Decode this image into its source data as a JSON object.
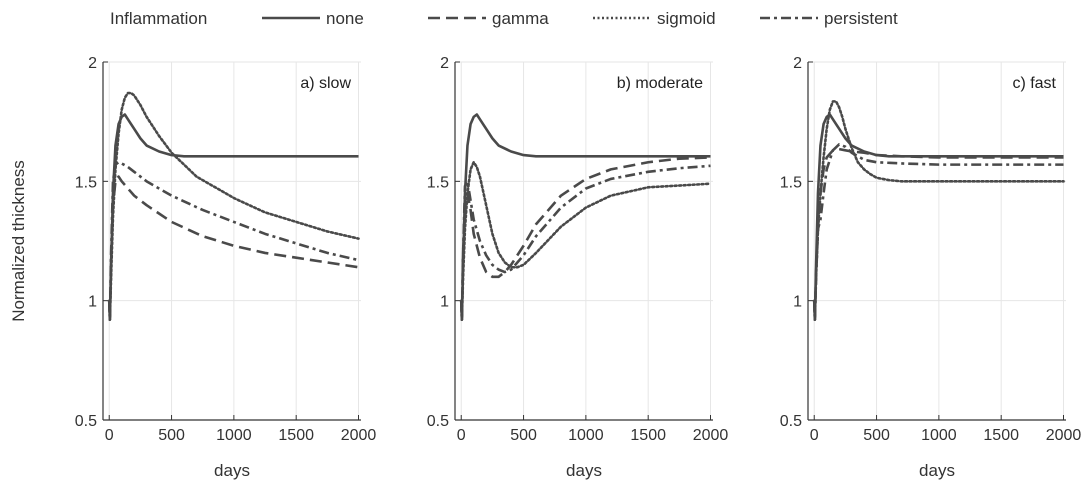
{
  "legend": {
    "title": "Inflammation",
    "entries": [
      "none",
      "gamma",
      "sigmoid",
      "persistent"
    ]
  },
  "colors": {
    "line": "#4a4a4a",
    "grid": "#e6e6e6",
    "axis": "#333333"
  },
  "chart_data": [
    {
      "type": "line",
      "title": "a) slow",
      "xlabel": "days",
      "ylabel": "Normalized thickness",
      "xlim": [
        -50,
        2020
      ],
      "ylim": [
        0.5,
        2
      ],
      "xticks": [
        0,
        500,
        1000,
        1500,
        2000
      ],
      "yticks": [
        0.5,
        1,
        1.5,
        2
      ],
      "grid": true,
      "series": [
        {
          "name": "none",
          "style": "solid",
          "x": [
            0,
            5,
            15,
            30,
            50,
            75,
            100,
            125,
            150,
            200,
            250,
            300,
            400,
            500,
            600,
            800,
            1000,
            1500,
            2000
          ],
          "y": [
            1.0,
            0.92,
            1.15,
            1.45,
            1.65,
            1.74,
            1.77,
            1.78,
            1.76,
            1.72,
            1.68,
            1.65,
            1.625,
            1.61,
            1.605,
            1.605,
            1.605,
            1.605,
            1.605
          ]
        },
        {
          "name": "gamma",
          "style": "dashed",
          "x": [
            0,
            5,
            15,
            30,
            50,
            75,
            100,
            150,
            200,
            300,
            500,
            750,
            1000,
            1250,
            1500,
            1750,
            2000
          ],
          "y": [
            1.0,
            0.92,
            1.15,
            1.4,
            1.5,
            1.52,
            1.5,
            1.47,
            1.44,
            1.4,
            1.33,
            1.27,
            1.23,
            1.2,
            1.18,
            1.16,
            1.14
          ]
        },
        {
          "name": "sigmoid",
          "style": "dotted",
          "x": [
            0,
            5,
            15,
            30,
            50,
            75,
            100,
            125,
            150,
            175,
            200,
            250,
            300,
            400,
            500,
            700,
            1000,
            1250,
            1500,
            1750,
            2000
          ],
          "y": [
            1.0,
            0.92,
            1.1,
            1.35,
            1.55,
            1.7,
            1.8,
            1.85,
            1.87,
            1.87,
            1.86,
            1.82,
            1.77,
            1.69,
            1.62,
            1.52,
            1.43,
            1.37,
            1.33,
            1.29,
            1.26
          ]
        },
        {
          "name": "persistent",
          "style": "dashdot",
          "x": [
            0,
            5,
            15,
            30,
            50,
            75,
            100,
            150,
            200,
            300,
            500,
            750,
            1000,
            1250,
            1500,
            1750,
            2000
          ],
          "y": [
            1.0,
            0.92,
            1.2,
            1.5,
            1.57,
            1.58,
            1.575,
            1.56,
            1.54,
            1.5,
            1.44,
            1.38,
            1.33,
            1.28,
            1.24,
            1.2,
            1.17
          ]
        }
      ]
    },
    {
      "type": "line",
      "title": "b) moderate",
      "xlabel": "days",
      "ylabel": "",
      "xlim": [
        -50,
        2020
      ],
      "ylim": [
        0.5,
        2
      ],
      "xticks": [
        0,
        500,
        1000,
        1500,
        2000
      ],
      "yticks": [
        0.5,
        1,
        1.5,
        2
      ],
      "grid": true,
      "series": [
        {
          "name": "none",
          "style": "solid",
          "x": [
            0,
            5,
            15,
            30,
            50,
            75,
            100,
            125,
            150,
            200,
            250,
            300,
            400,
            500,
            600,
            800,
            1000,
            1500,
            2000
          ],
          "y": [
            1.0,
            0.92,
            1.15,
            1.45,
            1.65,
            1.74,
            1.77,
            1.78,
            1.76,
            1.72,
            1.68,
            1.65,
            1.625,
            1.61,
            1.605,
            1.605,
            1.605,
            1.605,
            1.605
          ]
        },
        {
          "name": "gamma",
          "style": "dashed",
          "x": [
            0,
            5,
            15,
            30,
            50,
            75,
            100,
            150,
            200,
            250,
            300,
            350,
            400,
            500,
            600,
            800,
            1000,
            1200,
            1500,
            1750,
            2000
          ],
          "y": [
            1.0,
            0.92,
            1.2,
            1.42,
            1.45,
            1.38,
            1.28,
            1.18,
            1.12,
            1.1,
            1.1,
            1.12,
            1.15,
            1.23,
            1.32,
            1.44,
            1.51,
            1.55,
            1.58,
            1.595,
            1.6
          ]
        },
        {
          "name": "sigmoid",
          "style": "dotted",
          "x": [
            0,
            5,
            15,
            30,
            50,
            75,
            100,
            125,
            150,
            200,
            250,
            300,
            350,
            400,
            450,
            500,
            600,
            800,
            1000,
            1200,
            1500,
            2000
          ],
          "y": [
            1.0,
            0.92,
            1.1,
            1.3,
            1.45,
            1.55,
            1.58,
            1.56,
            1.52,
            1.4,
            1.28,
            1.2,
            1.16,
            1.14,
            1.14,
            1.15,
            1.2,
            1.31,
            1.39,
            1.44,
            1.475,
            1.49
          ]
        },
        {
          "name": "persistent",
          "style": "dashdot",
          "x": [
            0,
            5,
            15,
            30,
            50,
            75,
            100,
            150,
            200,
            250,
            300,
            350,
            400,
            500,
            600,
            800,
            1000,
            1200,
            1500,
            1750,
            2000
          ],
          "y": [
            1.0,
            0.92,
            1.2,
            1.48,
            1.5,
            1.42,
            1.34,
            1.25,
            1.19,
            1.15,
            1.13,
            1.12,
            1.13,
            1.19,
            1.27,
            1.39,
            1.47,
            1.51,
            1.54,
            1.555,
            1.565
          ]
        }
      ]
    },
    {
      "type": "line",
      "title": "c) fast",
      "xlabel": "days",
      "ylabel": "",
      "xlim": [
        -50,
        2020
      ],
      "ylim": [
        0.5,
        2
      ],
      "xticks": [
        0,
        500,
        1000,
        1500,
        2000
      ],
      "yticks": [
        0.5,
        1,
        1.5,
        2
      ],
      "grid": true,
      "series": [
        {
          "name": "none",
          "style": "solid",
          "x": [
            0,
            5,
            15,
            30,
            50,
            75,
            100,
            125,
            150,
            200,
            250,
            300,
            400,
            500,
            600,
            800,
            1000,
            1500,
            2000
          ],
          "y": [
            1.0,
            0.92,
            1.15,
            1.45,
            1.65,
            1.74,
            1.77,
            1.78,
            1.76,
            1.72,
            1.68,
            1.65,
            1.625,
            1.61,
            1.605,
            1.605,
            1.605,
            1.605,
            1.605
          ]
        },
        {
          "name": "gamma",
          "style": "dashed",
          "x": [
            0,
            5,
            15,
            30,
            50,
            75,
            100,
            150,
            200,
            250,
            300,
            400,
            500,
            700,
            1000,
            1500,
            2000
          ],
          "y": [
            1.0,
            0.92,
            1.1,
            1.3,
            1.45,
            1.55,
            1.6,
            1.63,
            1.635,
            1.63,
            1.625,
            1.62,
            1.61,
            1.605,
            1.6,
            1.6,
            1.6
          ]
        },
        {
          "name": "sigmoid",
          "style": "dotted",
          "x": [
            0,
            5,
            15,
            30,
            50,
            75,
            100,
            125,
            150,
            175,
            200,
            225,
            250,
            300,
            350,
            400,
            450,
            500,
            600,
            700,
            800,
            1000,
            1500,
            2000
          ],
          "y": [
            1.0,
            0.92,
            1.1,
            1.3,
            1.45,
            1.6,
            1.72,
            1.8,
            1.835,
            1.835,
            1.81,
            1.77,
            1.72,
            1.64,
            1.58,
            1.55,
            1.53,
            1.515,
            1.505,
            1.5,
            1.5,
            1.5,
            1.5,
            1.5
          ]
        },
        {
          "name": "persistent",
          "style": "dashdot",
          "x": [
            0,
            5,
            15,
            30,
            50,
            75,
            100,
            150,
            200,
            250,
            300,
            400,
            500,
            700,
            1000,
            1500,
            2000
          ],
          "y": [
            1.0,
            0.92,
            1.12,
            1.3,
            1.34,
            1.45,
            1.55,
            1.63,
            1.655,
            1.645,
            1.62,
            1.59,
            1.58,
            1.575,
            1.57,
            1.57,
            1.57
          ]
        }
      ]
    }
  ]
}
